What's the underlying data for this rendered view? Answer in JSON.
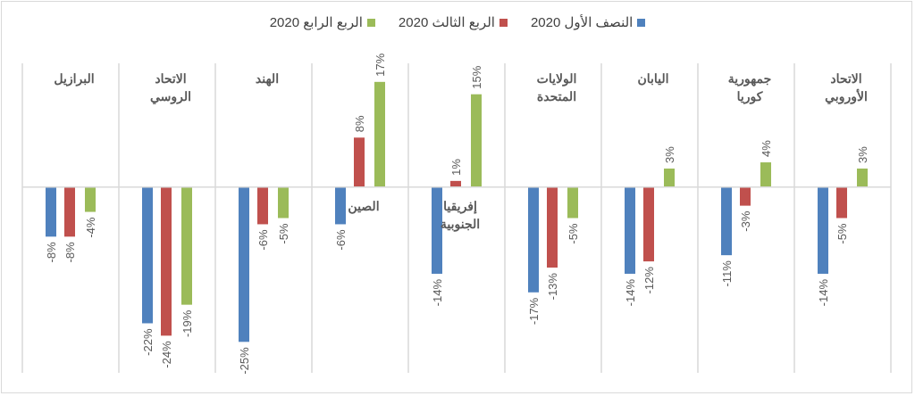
{
  "chart_data": {
    "type": "bar",
    "title": "",
    "xlabel": "",
    "ylabel": "",
    "ylim": [
      -30,
      20
    ],
    "grid": "vertical category separators only",
    "legend_position": "top",
    "categories": [
      "البرازيل",
      "الاتحاد الروسي",
      "الهند",
      "الصين",
      "إفريقيا الجنوبية",
      "الولايات المتحدة",
      "اليابان",
      "جمهورية كوريا",
      "الاتحاد الأوروبي"
    ],
    "series": [
      {
        "name": "النصف الأول 2020",
        "color": "#4f81bd",
        "values": [
          -8,
          -22,
          -25,
          -6,
          -14,
          -17,
          -14,
          -11,
          -14
        ]
      },
      {
        "name": "الربع الثالث 2020",
        "color": "#c0504d",
        "values": [
          -8,
          -24,
          -6,
          8,
          1,
          -13,
          -12,
          -3,
          -5
        ]
      },
      {
        "name": "الربع الرابع 2020",
        "color": "#9bbb59",
        "values": [
          -4,
          -19,
          -5,
          17,
          15,
          -5,
          3,
          4,
          3
        ]
      }
    ],
    "value_format": "%"
  }
}
